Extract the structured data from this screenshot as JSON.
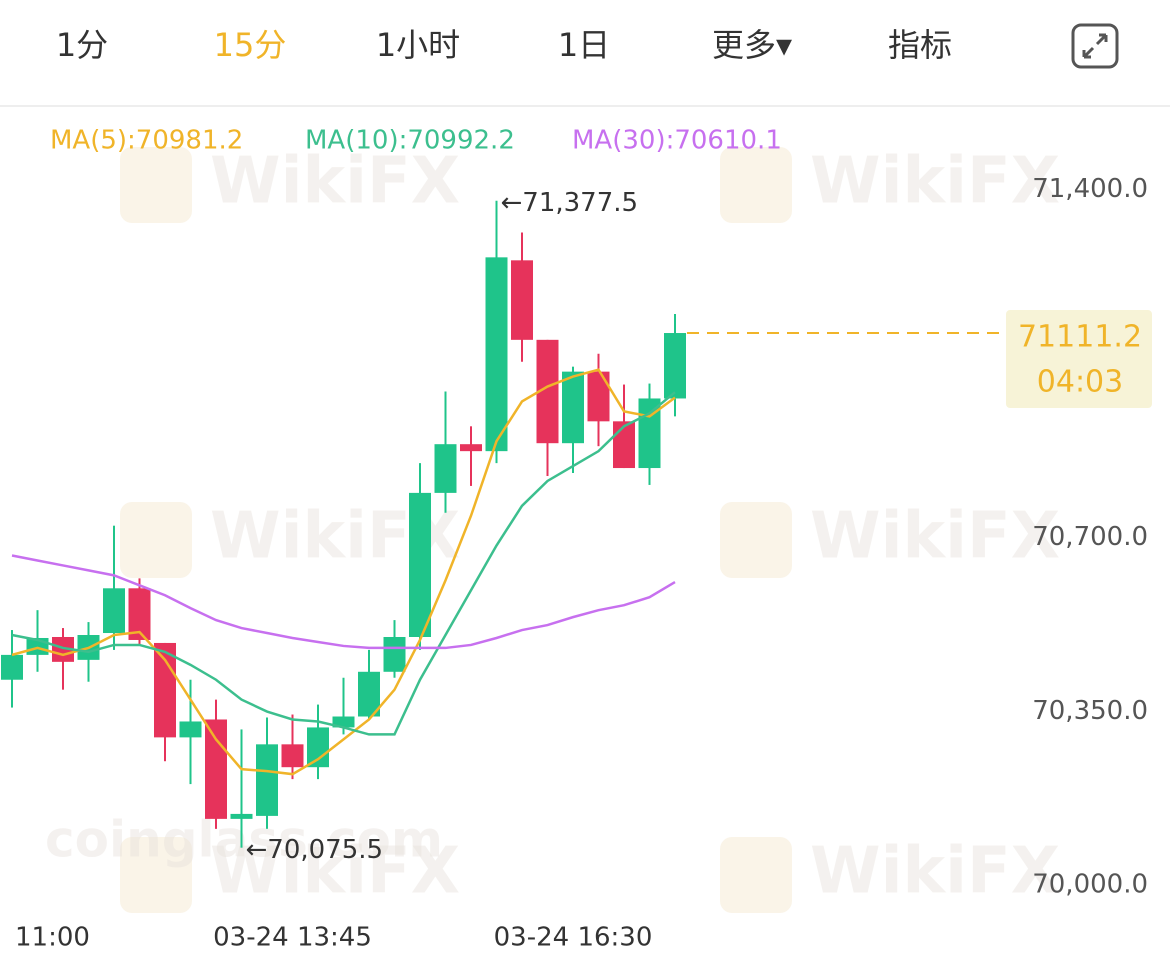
{
  "tabs": [
    "1分",
    "15分",
    "1小时",
    "1日",
    "更多▾",
    "指标"
  ],
  "active_tab": 1,
  "watermarks": [
    "WikiFX",
    "coinglass.com"
  ],
  "chart_data": {
    "type": "candlestick",
    "categories": [
      "11:00",
      null,
      null,
      null,
      null,
      null,
      null,
      null,
      null,
      null,
      null,
      "03-24 13:45",
      null,
      null,
      null,
      null,
      null,
      null,
      null,
      null,
      null,
      null,
      "03-24 16:30",
      null,
      null,
      null,
      null
    ],
    "open": [
      70413.5,
      70463.5,
      70499.5,
      70453.5,
      70507.5,
      70597.5,
      70487.5,
      70297.5,
      70333.5,
      70133.5,
      70139.5,
      70283.5,
      70237.5,
      70317.5,
      70339.5,
      70429.5,
      70499.5,
      70789.5,
      70887.5,
      70873.5,
      71257.5,
      71097.5,
      70889.5,
      71033.5,
      70933.5,
      70839.5,
      70979.5
    ],
    "high": [
      70513.5,
      70553.5,
      70517.5,
      70529.5,
      70723.5,
      70617.5,
      70487.5,
      70413.5,
      70373.5,
      70313.5,
      70337.5,
      70343.5,
      70363.5,
      70417.5,
      70473.5,
      70533.5,
      70849.5,
      70993.5,
      70923.5,
      71377.5,
      71313.5,
      71097.5,
      71043.5,
      71069.5,
      71007.5,
      71009.5,
      71149.5
    ],
    "low": [
      70357.5,
      70429.5,
      70393.5,
      70409.5,
      70473.5,
      70483.5,
      70249.5,
      70203.5,
      70113.5,
      70075.5,
      70113.5,
      70213.5,
      70213.5,
      70303.5,
      70333.5,
      70417.5,
      70473.5,
      70749.5,
      70803.5,
      70849.5,
      71053.5,
      70823.5,
      70829.5,
      70883.5,
      70839.5,
      70805.5,
      70943.5
    ],
    "close": [
      70463.5,
      70497.5,
      70449.5,
      70503.5,
      70597.5,
      70493.5,
      70297.5,
      70329.5,
      70133.5,
      70143.5,
      70283.5,
      70237.5,
      70317.5,
      70339.5,
      70429.5,
      70499.5,
      70789.5,
      70887.5,
      70873.5,
      71263.5,
      71097.5,
      70889.5,
      71033.5,
      70933.5,
      70839.5,
      70979.5,
      71111.2
    ],
    "up_color": "#1fc48a",
    "down_color": "#e6335b",
    "series": [
      {
        "name": "MA(5):70981.2",
        "color": "#f0b429",
        "values": [
          70463.5,
          70477.5,
          70463.5,
          70477.5,
          70503.5,
          70509.5,
          70453.5,
          70373.5,
          70293.5,
          70233.5,
          70229.5,
          70223.5,
          70253.5,
          70293.5,
          70333.5,
          70393.5,
          70493.5,
          70613.5,
          70743.5,
          70893.5,
          70973.5,
          71003.5,
          71023.5,
          71037.5,
          70953.5,
          70943.5,
          70981.2
        ]
      },
      {
        "name": "MA(10):70992.2",
        "color": "#3cbf8e",
        "values": [
          70503.5,
          70493.5,
          70477.5,
          70469.5,
          70483.5,
          70483.5,
          70469.5,
          70443.5,
          70413.5,
          70373.5,
          70349.5,
          70333.5,
          70329.5,
          70317.5,
          70303.5,
          70303.5,
          70413.5,
          70503.5,
          70593.5,
          70683.5,
          70763.5,
          70813.5,
          70843.5,
          70873.5,
          70923.5,
          70949.5,
          70992.2
        ]
      },
      {
        "name": "MA(30):70610.1",
        "color": "#c770ef",
        "values": [
          70663.5,
          70653.5,
          70643.5,
          70633.5,
          70623.5,
          70603.5,
          70583.5,
          70557.5,
          70533.5,
          70517.5,
          70507.5,
          70497.5,
          70489.5,
          70481.5,
          70477.5,
          70477.5,
          70477.5,
          70477.5,
          70483.5,
          70497.5,
          70513.5,
          70523.5,
          70539.5,
          70553.5,
          70563.5,
          70579.5,
          70610.1
        ]
      }
    ],
    "ylim": [
      69930,
      71560
    ],
    "yticks": [
      {
        "value": 71400,
        "label": "71,400.0"
      },
      {
        "value": 70700,
        "label": "70,700.0"
      },
      {
        "value": 70350,
        "label": "70,350.0"
      },
      {
        "value": 70000,
        "label": "70,000.0"
      }
    ],
    "annotations": [
      {
        "value": 71377.5,
        "label": "←71,377.5",
        "index": 19
      },
      {
        "value": 70075.5,
        "label": "←70,075.5",
        "index": 9
      }
    ],
    "last_price": 71111.2,
    "countdown": "04:03",
    "last_color": "#f0b429"
  }
}
